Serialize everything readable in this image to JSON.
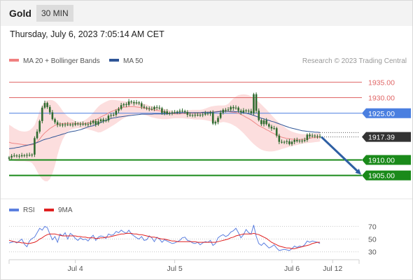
{
  "header": {
    "symbol": "Gold",
    "timeframe": "30 MIN",
    "datetime": "Thursday, July 6, 2023 7:05:14 AM CET"
  },
  "credit": "Research © 2023 Trading Central",
  "colors": {
    "resistance": "#e06666",
    "pivot": "#4a7fe0",
    "support": "#1a8a1a",
    "current": "#333333",
    "bollinger_fill": "#fcdede",
    "ma20": "#ee8888",
    "ma50": "#2f5597",
    "candle": "#2f6b2f",
    "arrow": "#2e5fa3",
    "rsi": "#5b7fe0",
    "rsi_ma": "#e02020"
  },
  "chart_data": [
    {
      "type": "candlestick",
      "legend": [
        {
          "label": "MA 20 + Bollinger Bands",
          "color": "#f08080"
        },
        {
          "label": "MA 50",
          "color": "#2f5597"
        }
      ],
      "ylim": [
        1899.3,
        1938.9
      ],
      "x_ticks": [
        {
          "i": 26,
          "label": "Jul 4"
        },
        {
          "i": 65,
          "label": "Jul 5"
        },
        {
          "i": 111,
          "label": "Jul 6"
        },
        {
          "i": 127,
          "label": "Jul 12"
        }
      ],
      "levels": [
        {
          "value": 1935.0,
          "label": "1935.00",
          "kind": "resistance"
        },
        {
          "value": 1930.0,
          "label": "1930.00",
          "kind": "resistance"
        },
        {
          "value": 1925.0,
          "label": "1925.00",
          "kind": "pivot"
        },
        {
          "value": 1917.39,
          "label": "1917.39",
          "kind": "current"
        },
        {
          "value": 1910.0,
          "label": "1910.00",
          "kind": "support"
        },
        {
          "value": 1905.0,
          "label": "1905.00",
          "kind": "support"
        }
      ],
      "forecast_arrow": {
        "from": 1917.4,
        "to": 1905.9
      },
      "close": [
        1910.8,
        1911.3,
        1911.4,
        1911.3,
        1911.2,
        1911.5,
        1911.4,
        1911.6,
        1911.5,
        1911.7,
        1917.0,
        1919.1,
        1922.5,
        1926.8,
        1928.3,
        1927.0,
        1925.3,
        1923.1,
        1922.1,
        1921.3,
        1921.1,
        1921.4,
        1921.3,
        1921.4,
        1921.4,
        1921.3,
        1921.7,
        1921.6,
        1921.4,
        1921.6,
        1921.4,
        1921.5,
        1921.9,
        1922.5,
        1921.4,
        1922.4,
        1923.0,
        1922.5,
        1922.7,
        1924.2,
        1924.4,
        1924.5,
        1925.8,
        1926.4,
        1927.6,
        1927.9,
        1927.7,
        1928.8,
        1928.6,
        1928.2,
        1928.5,
        1928.2,
        1927.1,
        1926.8,
        1926.6,
        1926.4,
        1926.3,
        1927.0,
        1926.8,
        1926.6,
        1925.1,
        1925.6,
        1924.9,
        1925.1,
        1925.3,
        1925.3,
        1925.5,
        1925.8,
        1925.7,
        1925.4,
        1924.5,
        1924.3,
        1924.4,
        1924.5,
        1924.4,
        1924.5,
        1924.6,
        1925.0,
        1924.9,
        1925.2,
        1921.7,
        1922.2,
        1923.5,
        1925.2,
        1926.1,
        1926.0,
        1926.2,
        1927.0,
        1926.6,
        1926.8,
        1925.8,
        1925.3,
        1925.9,
        1925.8,
        1925.7,
        1925.0,
        1931.1,
        1925.8,
        1922.8,
        1921.5,
        1922.7,
        1921.5,
        1920.7,
        1920.1,
        1920.2,
        1917.8,
        1915.8,
        1915.7,
        1915.8,
        1916.0,
        1915.1,
        1915.8,
        1916.4,
        1916.0,
        1916.2,
        1916.1,
        1916.4,
        1918.1,
        1917.6,
        1917.8,
        1917.6,
        1917.6,
        1917.4
      ],
      "ma20": [
        1915.7,
        1915.4,
        1915.3,
        1915.2,
        1915.1,
        1915.0,
        1914.9,
        1914.8,
        1914.8,
        1914.9,
        1915.0,
        1915.8,
        1916.7,
        1917.8,
        1918.7,
        1919.4,
        1920.1,
        1920.6,
        1921.1,
        1921.4,
        1921.6,
        1921.7,
        1921.7,
        1921.7,
        1921.8,
        1921.8,
        1921.7,
        1921.6,
        1921.6,
        1921.6,
        1921.7,
        1921.9,
        1922.1,
        1922.6,
        1922.9,
        1923.3,
        1923.8,
        1924.2,
        1924.6,
        1925.1,
        1925.5,
        1925.8,
        1926.2,
        1926.5,
        1926.7,
        1926.9,
        1927.0,
        1927.1,
        1927.1,
        1927.1,
        1927.0,
        1926.9,
        1926.8,
        1926.7,
        1926.5,
        1926.3,
        1926.2,
        1926.0,
        1925.9,
        1925.8,
        1925.6,
        1925.4,
        1925.2,
        1925.0,
        1924.9,
        1924.8,
        1924.8,
        1924.8,
        1924.9,
        1924.9,
        1925.0,
        1925.0,
        1925.0,
        1925.0,
        1925.0,
        1925.0,
        1925.1,
        1925.3,
        1925.4,
        1925.4,
        1925.4,
        1925.5,
        1925.6,
        1925.6,
        1925.7,
        1925.7,
        1925.6,
        1925.4,
        1925.3,
        1925.2,
        1925.0,
        1924.6,
        1924.2,
        1923.7,
        1923.3,
        1922.8,
        1922.2,
        1921.6,
        1921.0,
        1920.6,
        1920.2,
        1919.7,
        1919.3,
        1918.8,
        1918.4,
        1918.0,
        1917.6,
        1917.3,
        1917.1,
        1916.9,
        1916.8,
        1916.7,
        1916.6,
        1916.6,
        1916.6,
        1916.6,
        1916.7,
        1916.8,
        1917.0,
        1917.1,
        1917.2,
        1917.3,
        1917.3
      ],
      "ma50": [
        1913.6,
        1913.7,
        1913.8,
        1914.0,
        1914.1,
        1914.3,
        1914.5,
        1914.7,
        1914.9,
        1915.1,
        1915.3,
        1915.6,
        1915.9,
        1916.3,
        1916.6,
        1916.8,
        1917.0,
        1917.3,
        1917.5,
        1917.8,
        1918.0,
        1918.3,
        1918.5,
        1918.8,
        1919.0,
        1919.2,
        1919.3,
        1919.5,
        1919.7,
        1920.0,
        1920.3,
        1920.6,
        1920.8,
        1921.0,
        1921.3,
        1921.7,
        1922.0,
        1922.4,
        1922.7,
        1923.0,
        1923.3,
        1923.5,
        1923.6,
        1923.8,
        1923.9,
        1924.0,
        1924.1,
        1924.2,
        1924.3,
        1924.4,
        1924.5,
        1924.6,
        1924.7,
        1924.7,
        1924.7,
        1924.7,
        1924.7,
        1924.8,
        1924.8,
        1924.8,
        1924.8,
        1924.8,
        1924.8,
        1924.9,
        1925.0,
        1925.1,
        1925.2,
        1925.2,
        1925.2,
        1925.2,
        1925.2,
        1925.2,
        1925.2,
        1925.2,
        1925.2,
        1925.2,
        1925.3,
        1925.3,
        1925.3,
        1925.3,
        1925.3,
        1925.4,
        1925.5,
        1925.6,
        1925.6,
        1925.6,
        1925.6,
        1925.6,
        1925.6,
        1925.5,
        1925.5,
        1925.4,
        1925.2,
        1925.0,
        1924.8,
        1924.6,
        1924.3,
        1924.0,
        1923.7,
        1923.4,
        1923.2,
        1922.9,
        1922.7,
        1922.4,
        1922.2,
        1921.9,
        1921.6,
        1921.3,
        1921.0,
        1920.7,
        1920.4,
        1920.2,
        1920.0,
        1919.8,
        1919.6,
        1919.4,
        1919.3,
        1919.2,
        1919.1,
        1919.0,
        1918.9,
        1918.9,
        1918.8
      ],
      "bb_upper": [
        1921.3,
        1920.8,
        1920.2,
        1919.8,
        1919.4,
        1919.2,
        1919.1,
        1919.2,
        1919.5,
        1920.2,
        1921.2,
        1923.2,
        1925.8,
        1927.6,
        1928.8,
        1929.2,
        1929.3,
        1929.2,
        1928.8,
        1928.0,
        1927.0,
        1925.8,
        1924.8,
        1924.0,
        1923.4,
        1922.9,
        1922.5,
        1922.3,
        1922.3,
        1922.5,
        1922.9,
        1923.5,
        1924.2,
        1925.2,
        1926.2,
        1927.1,
        1927.8,
        1928.3,
        1928.7,
        1929.1,
        1929.3,
        1929.3,
        1929.2,
        1929.1,
        1929.0,
        1928.9,
        1928.8,
        1928.8,
        1928.7,
        1928.6,
        1928.5,
        1928.4,
        1928.2,
        1928.0,
        1927.8,
        1927.5,
        1927.3,
        1927.1,
        1927.0,
        1926.8,
        1926.6,
        1926.4,
        1926.2,
        1926.0,
        1925.8,
        1925.7,
        1925.6,
        1925.6,
        1925.6,
        1925.7,
        1925.9,
        1926.0,
        1926.1,
        1926.1,
        1926.1,
        1926.1,
        1926.2,
        1926.5,
        1926.8,
        1927.1,
        1927.3,
        1927.4,
        1927.5,
        1927.5,
        1927.5,
        1927.6,
        1928.0,
        1928.9,
        1929.7,
        1930.4,
        1930.8,
        1931.0,
        1931.1,
        1931.0,
        1930.8,
        1930.4,
        1929.9,
        1929.3,
        1928.6,
        1927.8,
        1927.0,
        1926.2,
        1925.3,
        1924.4,
        1923.5,
        1922.7,
        1921.9,
        1921.2,
        1920.6,
        1920.0,
        1919.5,
        1919.1,
        1918.8,
        1918.6,
        1918.4,
        1918.3,
        1918.3,
        1918.3,
        1918.4,
        1918.5,
        1918.6,
        1918.7,
        1918.8
      ],
      "bb_lower": [
        1910.0,
        1909.8,
        1909.7,
        1909.6,
        1909.6,
        1909.6,
        1909.6,
        1909.5,
        1909.4,
        1909.0,
        1907.9,
        1906.3,
        1904.8,
        1903.8,
        1903.2,
        1903.1,
        1903.8,
        1905.6,
        1908.2,
        1911.6,
        1914.4,
        1916.5,
        1918.0,
        1919.0,
        1919.6,
        1919.9,
        1920.1,
        1920.2,
        1920.2,
        1920.1,
        1920.0,
        1919.8,
        1919.6,
        1919.4,
        1919.1,
        1918.8,
        1918.9,
        1919.3,
        1919.7,
        1920.2,
        1920.7,
        1921.2,
        1921.7,
        1922.3,
        1922.9,
        1923.4,
        1923.8,
        1924.1,
        1924.4,
        1924.6,
        1924.7,
        1924.8,
        1924.7,
        1924.5,
        1924.3,
        1924.0,
        1923.7,
        1923.5,
        1923.3,
        1923.2,
        1923.1,
        1923.1,
        1923.1,
        1923.2,
        1923.3,
        1923.4,
        1923.4,
        1923.4,
        1923.4,
        1923.3,
        1923.2,
        1923.2,
        1923.1,
        1923.0,
        1923.0,
        1923.0,
        1922.9,
        1922.8,
        1922.6,
        1922.4,
        1922.2,
        1922.0,
        1921.9,
        1922.0,
        1922.2,
        1922.1,
        1921.9,
        1921.6,
        1921.2,
        1920.7,
        1920.1,
        1919.4,
        1918.6,
        1917.7,
        1916.8,
        1915.9,
        1915.1,
        1914.4,
        1913.8,
        1913.3,
        1913.0,
        1912.8,
        1912.7,
        1912.7,
        1912.8,
        1913.0,
        1913.2,
        1913.5,
        1913.7,
        1914.0,
        1914.2,
        1914.4,
        1914.6,
        1914.8,
        1915.0,
        1915.2,
        1915.3,
        1915.4,
        1915.5,
        1915.6,
        1915.7,
        1915.8,
        1915.9
      ]
    },
    {
      "type": "line",
      "legend": [
        {
          "label": "RSI",
          "color": "#5b7fe0"
        },
        {
          "label": "9MA",
          "color": "#e02020"
        }
      ],
      "ylim": [
        22,
        88
      ],
      "y_ticks": [
        70,
        50,
        30
      ],
      "series": [
        {
          "name": "RSI",
          "values": [
            44,
            45,
            46,
            44,
            47,
            50,
            42,
            38,
            47,
            51,
            53,
            60,
            67,
            64,
            70,
            68,
            58,
            49,
            54,
            45,
            58,
            55,
            60,
            50,
            59,
            56,
            51,
            48,
            52,
            49,
            50,
            47,
            52,
            56,
            48,
            53,
            55,
            54,
            51,
            58,
            56,
            57,
            62,
            60,
            64,
            61,
            59,
            64,
            58,
            55,
            52,
            50,
            54,
            48,
            49,
            55,
            52,
            46,
            53,
            50,
            45,
            49,
            47,
            45,
            43,
            44,
            46,
            48,
            52,
            53,
            48,
            47,
            44,
            43,
            45,
            41,
            44,
            46,
            45,
            48,
            40,
            43,
            52,
            55,
            57,
            54,
            56,
            61,
            63,
            67,
            60,
            52,
            57,
            65,
            60,
            58,
            72,
            54,
            43,
            40,
            44,
            40,
            36,
            38,
            41,
            36,
            32,
            33,
            34,
            33,
            32,
            35,
            39,
            37,
            39,
            38,
            41,
            47,
            45,
            47,
            46,
            45,
            43
          ]
        },
        {
          "name": "9MA",
          "values": [
            48,
            47,
            46,
            45,
            45,
            44,
            44,
            43,
            43,
            44,
            45,
            47,
            50,
            52,
            55,
            57,
            58,
            58,
            58,
            57,
            56,
            55,
            55,
            55,
            55,
            55,
            55,
            54,
            54,
            53,
            53,
            52,
            52,
            52,
            51,
            51,
            52,
            52,
            53,
            53,
            54,
            55,
            56,
            57,
            58,
            58,
            59,
            59,
            59,
            58,
            58,
            57,
            57,
            56,
            55,
            54,
            53,
            53,
            52,
            51,
            50,
            50,
            49,
            48,
            47,
            47,
            46,
            46,
            46,
            46,
            46,
            46,
            46,
            46,
            45,
            45,
            45,
            45,
            45,
            45,
            45,
            45,
            46,
            47,
            48,
            49,
            50,
            52,
            53,
            55,
            56,
            57,
            58,
            58,
            58,
            58,
            59,
            58,
            57,
            55,
            53,
            51,
            48,
            45,
            43,
            41,
            39,
            38,
            37,
            36,
            36,
            35,
            35,
            36,
            37,
            38,
            39,
            40,
            41,
            43,
            44,
            45,
            45
          ]
        }
      ]
    }
  ]
}
